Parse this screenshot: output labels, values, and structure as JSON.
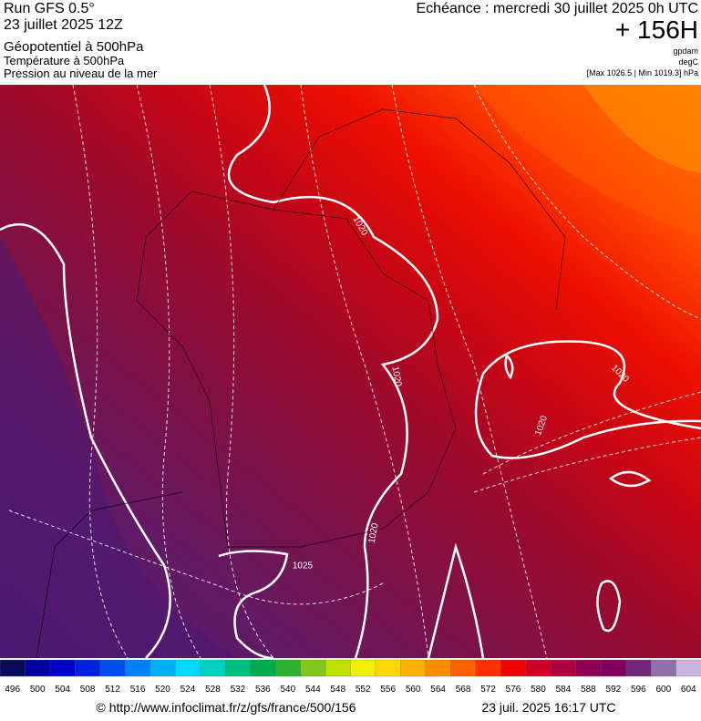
{
  "header": {
    "run": "Run GFS 0.5°",
    "date": "23 juillet 2025 12Z",
    "field1": "Géopotentiel à 500hPa",
    "field2": "Température à 500hPa",
    "field3": "Pression au niveau de la mer",
    "echeance": "Echéance : mercredi 30 juillet 2025 0h UTC",
    "offset": "+ 156H",
    "unit1": "gpdam",
    "unit2": "degC",
    "range": "[Max 1026.5 | Min 1019.3] hPa"
  },
  "map": {
    "contour_labels": [
      "1020",
      "1020",
      "1020",
      "1020",
      "1020",
      "1025"
    ]
  },
  "colorbar": {
    "labels": [
      496,
      500,
      504,
      508,
      512,
      516,
      520,
      524,
      528,
      532,
      536,
      540,
      544,
      548,
      552,
      556,
      560,
      564,
      568,
      572,
      576,
      580,
      584,
      588,
      592,
      596,
      600,
      604
    ],
    "colors": [
      "#0a0a5a",
      "#0000a0",
      "#0000c8",
      "#0020e0",
      "#0050f0",
      "#0080ff",
      "#00b0ff",
      "#00d8ff",
      "#00d0c0",
      "#00c080",
      "#00a850",
      "#30b030",
      "#80c820",
      "#c0e000",
      "#f0f000",
      "#ffd800",
      "#ffb000",
      "#ff8c00",
      "#ff6000",
      "#ff3000",
      "#f00000",
      "#d0002a",
      "#b00040",
      "#900050",
      "#800060",
      "#702878",
      "#9070a8",
      "#c8b4dc"
    ]
  },
  "footer": {
    "url": "© http://www.infoclimat.fr/z/gfs/france/500/156",
    "timestamp": "23 juil. 2025 16:17 UTC"
  }
}
